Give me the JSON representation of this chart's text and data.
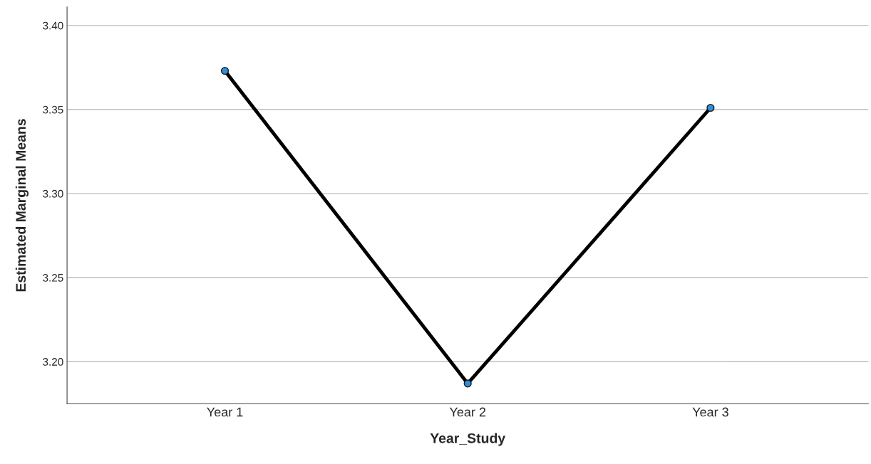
{
  "chart_data": {
    "type": "line",
    "xlabel": "Year_Study",
    "ylabel": "Estimated Marginal Means",
    "categories": [
      "Year 1",
      "Year 2",
      "Year 3"
    ],
    "series": [
      {
        "color": "#000000",
        "values": [
          3.373,
          3.187,
          3.351
        ]
      }
    ],
    "marker": "circle",
    "line_style": "solid",
    "ylim": [
      3.175,
      3.411
    ],
    "yticks": [
      {
        "value": 3.2,
        "label": "3.20"
      },
      {
        "value": 3.25,
        "label": "3.25"
      },
      {
        "value": 3.3,
        "label": "3.30"
      },
      {
        "value": 3.35,
        "label": "3.35"
      },
      {
        "value": 3.4,
        "label": "3.40"
      }
    ],
    "grid": "y",
    "legend": false
  }
}
